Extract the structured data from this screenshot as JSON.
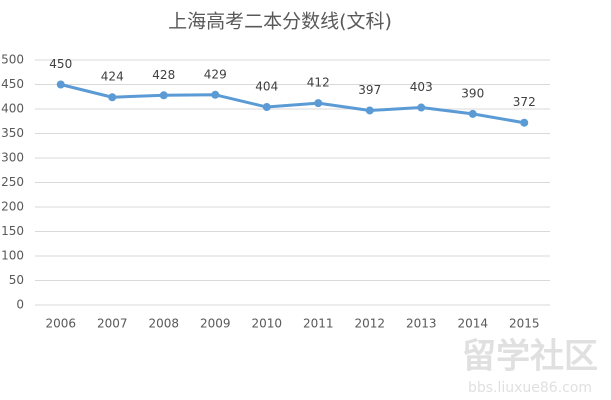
{
  "chart_data": {
    "type": "line",
    "title": "上海高考二本分数线(文科)",
    "categories": [
      "2006",
      "2007",
      "2008",
      "2009",
      "2010",
      "2011",
      "2012",
      "2013",
      "2014",
      "2015"
    ],
    "series": [
      {
        "name": "分数线",
        "color": "#5b9bd5",
        "values": [
          450,
          424,
          428,
          429,
          404,
          412,
          397,
          403,
          390,
          372
        ]
      }
    ],
    "ylim": [
      0,
      500
    ],
    "yticks": [
      0,
      50,
      100,
      150,
      200,
      250,
      300,
      350,
      400,
      450,
      500
    ],
    "grid": true,
    "watermark": [
      "留学社区",
      "bbs.liuxue86.com"
    ]
  }
}
